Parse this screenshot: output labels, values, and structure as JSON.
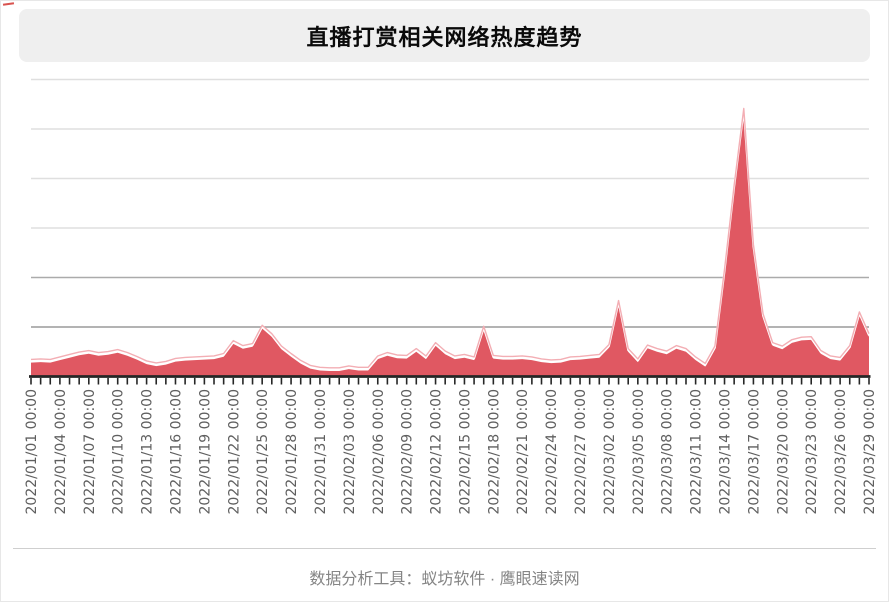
{
  "header": {
    "title": "直播打赏相关网络热度趋势"
  },
  "footer": {
    "credit": "数据分析工具：蚁坊软件 · 鹰眼速读网"
  },
  "chart_data": {
    "type": "area",
    "title": "直播打赏相关网络热度趋势",
    "series_name": "网络热度",
    "legend": "none",
    "grid": true,
    "x_tick_label_every": 3,
    "x_tick_label_rotation_deg": -90,
    "y_axis": {
      "labels_visible": false,
      "gridline_values": [
        1,
        2,
        3,
        4,
        5,
        6
      ]
    },
    "ylim": [
      0,
      6
    ],
    "colors": {
      "fill": "#e05862",
      "edge_white": "#ffffff",
      "edge_pink": "#f3aeb4",
      "axis": "#262626",
      "gridline_minor": "#dfdfdf",
      "gridline_major1": "#9a9a9a",
      "gridline_major2": "#ababab",
      "tick_label": "#5f5f5f"
    },
    "x": [
      "2022/01/01 00:00",
      "2022/01/02 00:00",
      "2022/01/03 00:00",
      "2022/01/04 00:00",
      "2022/01/05 00:00",
      "2022/01/06 00:00",
      "2022/01/07 00:00",
      "2022/01/08 00:00",
      "2022/01/09 00:00",
      "2022/01/10 00:00",
      "2022/01/11 00:00",
      "2022/01/12 00:00",
      "2022/01/13 00:00",
      "2022/01/14 00:00",
      "2022/01/15 00:00",
      "2022/01/16 00:00",
      "2022/01/17 00:00",
      "2022/01/18 00:00",
      "2022/01/19 00:00",
      "2022/01/20 00:00",
      "2022/01/21 00:00",
      "2022/01/22 00:00",
      "2022/01/23 00:00",
      "2022/01/24 00:00",
      "2022/01/25 00:00",
      "2022/01/26 00:00",
      "2022/01/27 00:00",
      "2022/01/28 00:00",
      "2022/01/29 00:00",
      "2022/01/30 00:00",
      "2022/01/31 00:00",
      "2022/02/01 00:00",
      "2022/02/02 00:00",
      "2022/02/03 00:00",
      "2022/02/04 00:00",
      "2022/02/05 00:00",
      "2022/02/06 00:00",
      "2022/02/07 00:00",
      "2022/02/08 00:00",
      "2022/02/09 00:00",
      "2022/02/10 00:00",
      "2022/02/11 00:00",
      "2022/02/12 00:00",
      "2022/02/13 00:00",
      "2022/02/14 00:00",
      "2022/02/15 00:00",
      "2022/02/16 00:00",
      "2022/02/17 00:00",
      "2022/02/18 00:00",
      "2022/02/19 00:00",
      "2022/02/20 00:00",
      "2022/02/21 00:00",
      "2022/02/22 00:00",
      "2022/02/23 00:00",
      "2022/02/24 00:00",
      "2022/02/25 00:00",
      "2022/02/26 00:00",
      "2022/02/27 00:00",
      "2022/02/28 00:00",
      "2022/03/01 00:00",
      "2022/03/02 00:00",
      "2022/03/03 00:00",
      "2022/03/04 00:00",
      "2022/03/05 00:00",
      "2022/03/06 00:00",
      "2022/03/07 00:00",
      "2022/03/08 00:00",
      "2022/03/09 00:00",
      "2022/03/10 00:00",
      "2022/03/11 00:00",
      "2022/03/12 00:00",
      "2022/03/13 00:00",
      "2022/03/14 00:00",
      "2022/03/15 00:00",
      "2022/03/16 00:00",
      "2022/03/17 00:00",
      "2022/03/18 00:00",
      "2022/03/19 00:00",
      "2022/03/20 00:00",
      "2022/03/21 00:00",
      "2022/03/22 00:00",
      "2022/03/23 00:00",
      "2022/03/24 00:00",
      "2022/03/25 00:00",
      "2022/03/26 00:00",
      "2022/03/27 00:00",
      "2022/03/28 00:00",
      "2022/03/29 00:00"
    ],
    "values": [
      0.28,
      0.29,
      0.28,
      0.33,
      0.38,
      0.43,
      0.46,
      0.42,
      0.44,
      0.48,
      0.42,
      0.34,
      0.25,
      0.21,
      0.24,
      0.3,
      0.32,
      0.33,
      0.34,
      0.35,
      0.4,
      0.66,
      0.56,
      0.6,
      0.97,
      0.8,
      0.55,
      0.4,
      0.26,
      0.16,
      0.12,
      0.11,
      0.11,
      0.15,
      0.12,
      0.12,
      0.35,
      0.42,
      0.37,
      0.36,
      0.5,
      0.35,
      0.62,
      0.45,
      0.35,
      0.38,
      0.33,
      0.95,
      0.36,
      0.34,
      0.34,
      0.35,
      0.33,
      0.29,
      0.27,
      0.28,
      0.33,
      0.34,
      0.36,
      0.38,
      0.58,
      1.47,
      0.5,
      0.29,
      0.57,
      0.5,
      0.45,
      0.56,
      0.5,
      0.33,
      0.2,
      0.55,
      2.1,
      3.8,
      5.35,
      2.6,
      1.2,
      0.62,
      0.55,
      0.68,
      0.73,
      0.74,
      0.46,
      0.35,
      0.32,
      0.56,
      1.24,
      0.8
    ]
  }
}
